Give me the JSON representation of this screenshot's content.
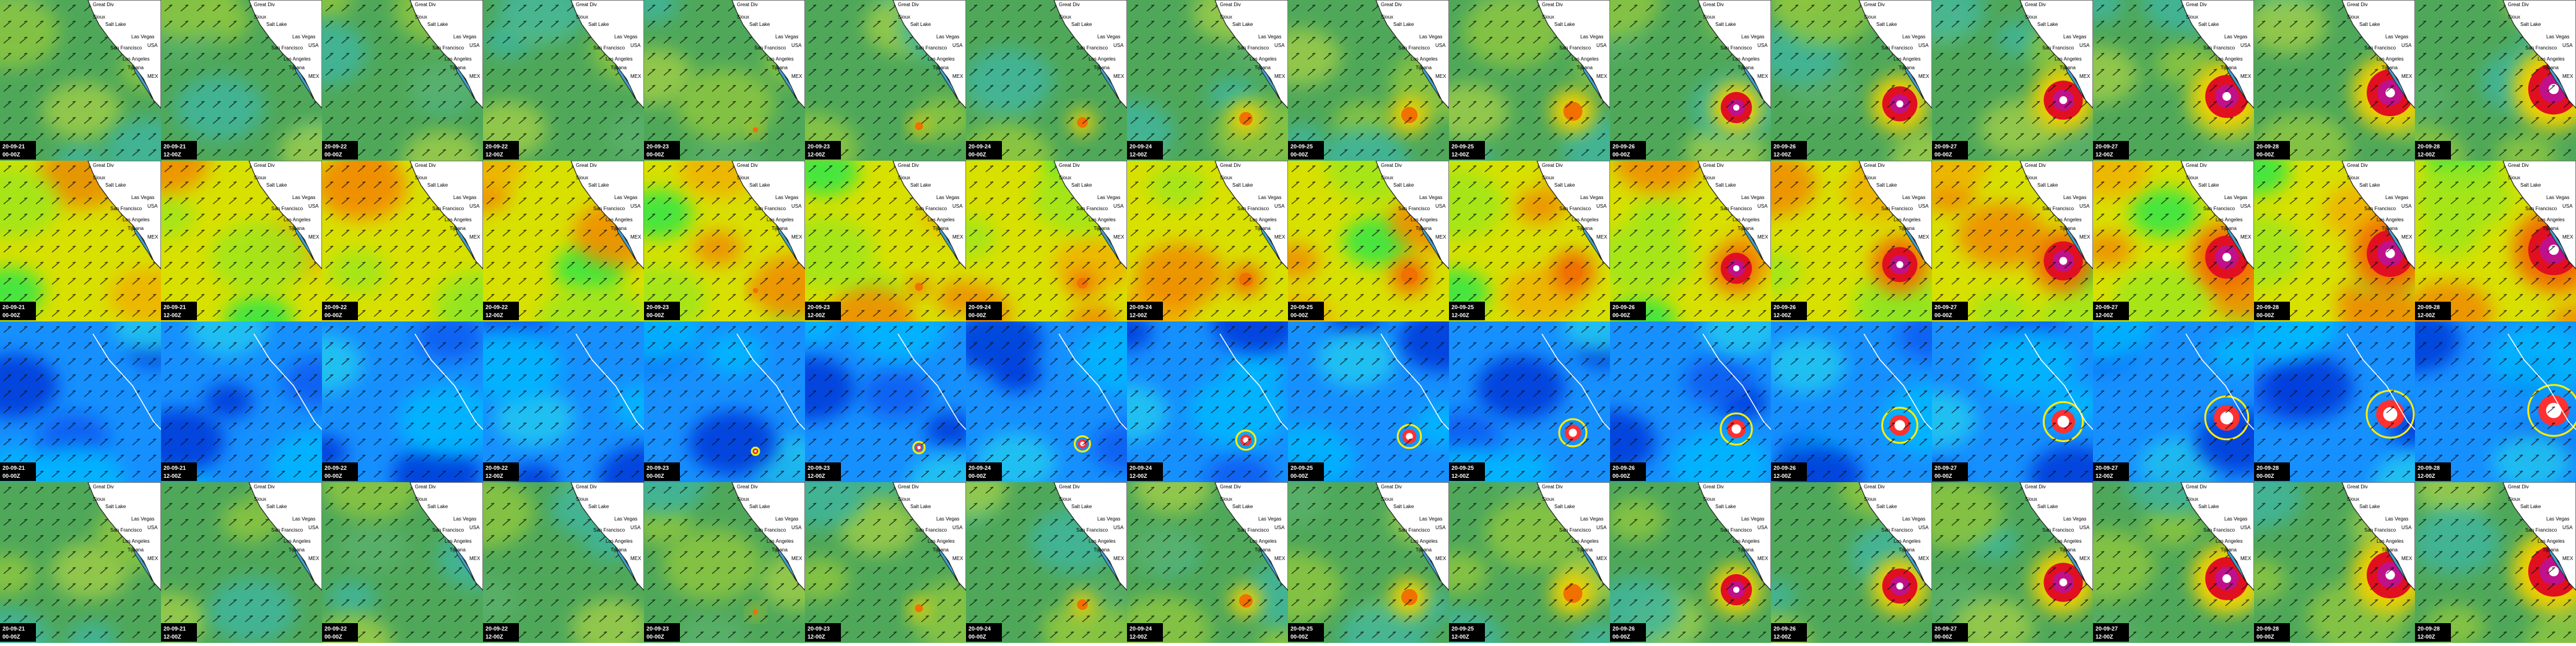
{
  "frames": [
    {
      "date": "20-09-21",
      "time": "00-00Z"
    },
    {
      "date": "20-09-21",
      "time": "12-00Z"
    },
    {
      "date": "20-09-22",
      "time": "00-00Z"
    },
    {
      "date": "20-09-22",
      "time": "12-00Z"
    },
    {
      "date": "20-09-23",
      "time": "00-00Z"
    },
    {
      "date": "20-09-23",
      "time": "12-00Z"
    },
    {
      "date": "20-09-24",
      "time": "00-00Z"
    },
    {
      "date": "20-09-24",
      "time": "12-00Z"
    },
    {
      "date": "20-09-25",
      "time": "00-00Z"
    },
    {
      "date": "20-09-25",
      "time": "12-00Z"
    },
    {
      "date": "20-09-26",
      "time": "00-00Z"
    },
    {
      "date": "20-09-26",
      "time": "12-00Z"
    },
    {
      "date": "20-09-27",
      "time": "00-00Z"
    },
    {
      "date": "20-09-27",
      "time": "12-00Z"
    },
    {
      "date": "20-09-28",
      "time": "00-00Z"
    },
    {
      "date": "20-09-28",
      "time": "12-00Z"
    }
  ],
  "places": [
    "Great Div",
    "Sioux",
    "Salt Lake",
    "Las Vegas",
    "San Francisco",
    "Los Angeles",
    "Tijuana",
    "USA",
    "MEX"
  ]
}
